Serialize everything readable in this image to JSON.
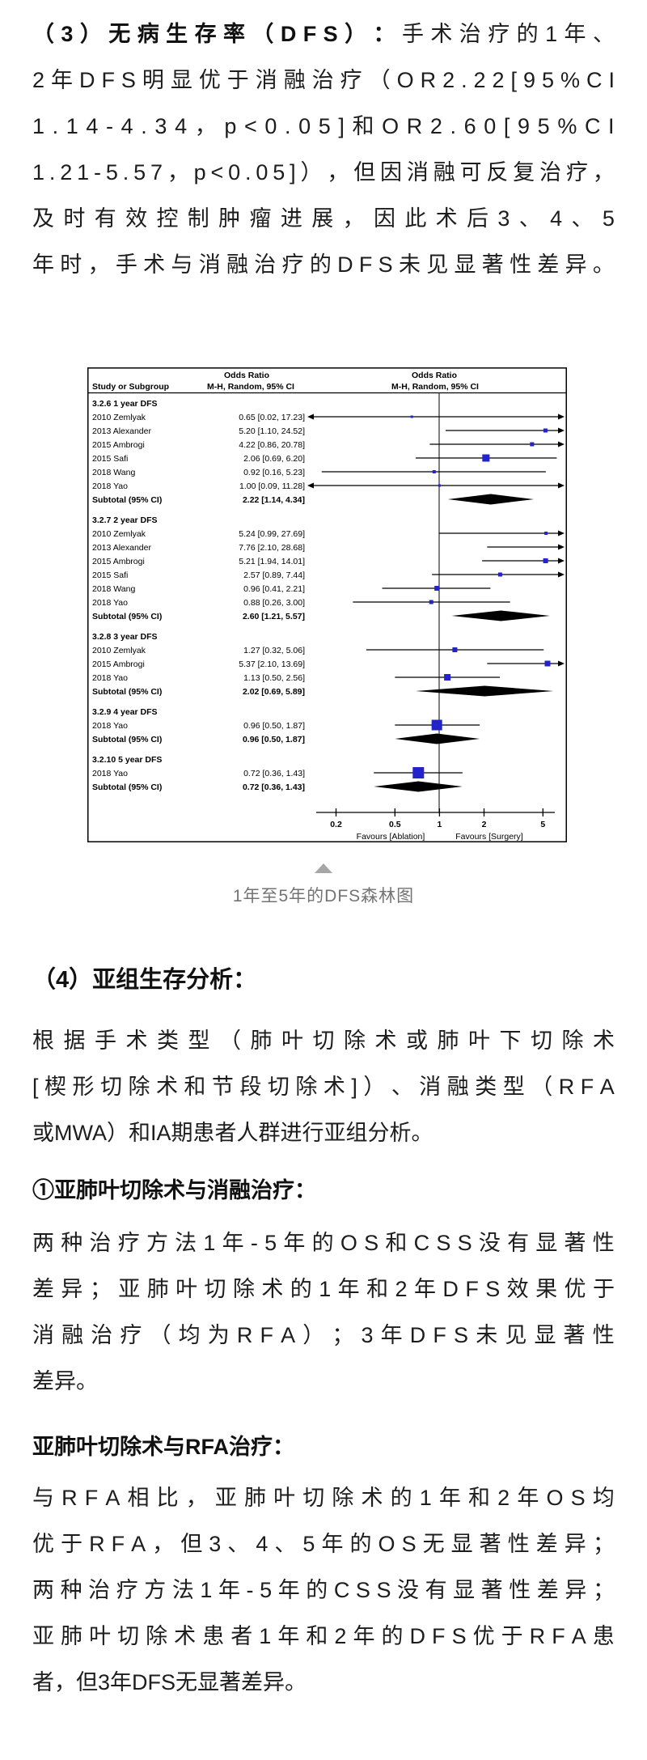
{
  "article": {
    "p1": {
      "lines": [
        {
          "j": true,
          "seg": [
            {
              "t": "（3）无病生存率（DFS）：",
              "b": true
            },
            {
              "t": "手术治疗的1年、",
              "b": false
            }
          ]
        },
        {
          "j": true,
          "seg": [
            {
              "t": "2年DFS明显优于消融治疗（OR2.22[95%CI",
              "b": false
            }
          ]
        },
        {
          "j": true,
          "seg": [
            {
              "t": "1.14-4.34，p<0.05]和OR2.60[95%CI",
              "b": false
            }
          ]
        },
        {
          "j": true,
          "seg": [
            {
              "t": "1.21-5.57，p<0.05]），但因消融可反复治疗，",
              "b": false
            }
          ]
        },
        {
          "j": true,
          "seg": [
            {
              "t": "及时有效控制肿瘤进展，因此术后3、4、5",
              "b": false
            }
          ]
        },
        {
          "j": true,
          "seg": [
            {
              "t": "年时，手术与消融治疗的DFS未见显著性差异。",
              "b": false
            }
          ]
        }
      ]
    },
    "caption": "1年至5年的DFS森林图",
    "heading4": "（4）亚组生存分析：",
    "p2": {
      "lines": [
        {
          "j": true,
          "seg": [
            {
              "t": "根据手术类型（肺叶切除术或肺叶下切除术",
              "b": false
            }
          ]
        },
        {
          "j": true,
          "seg": [
            {
              "t": "[楔形切除术和节段切除术]）、消融类型（RFA",
              "b": false
            }
          ]
        },
        {
          "j": false,
          "seg": [
            {
              "t": "或MWA）和IA期患者人群进行亚组分析。",
              "b": false
            }
          ]
        }
      ]
    },
    "heading_sub1": "①亚肺叶切除术与消融治疗：",
    "p3": {
      "lines": [
        {
          "j": true,
          "seg": [
            {
              "t": "两种治疗方法1年-5年的OS和CSS没有显著性",
              "b": false
            }
          ]
        },
        {
          "j": true,
          "seg": [
            {
              "t": "差异；亚肺叶切除术的1年和2年DFS效果优于",
              "b": false
            }
          ]
        },
        {
          "j": true,
          "seg": [
            {
              "t": "消融治疗（均为RFA）；3年DFS未见显著性",
              "b": false
            }
          ]
        },
        {
          "j": false,
          "seg": [
            {
              "t": "差异。",
              "b": false
            }
          ]
        }
      ]
    },
    "heading_sub2": "亚肺叶切除术与RFA治疗：",
    "p4": {
      "lines": [
        {
          "j": true,
          "seg": [
            {
              "t": "与RFA相比，亚肺叶切除术的1年和2年OS均",
              "b": false
            }
          ]
        },
        {
          "j": true,
          "seg": [
            {
              "t": "优于RFA，但3、4、5年的OS无显著性差异；",
              "b": false
            }
          ]
        },
        {
          "j": true,
          "seg": [
            {
              "t": "两种治疗方法1年-5年的CSS没有显著性差异；",
              "b": false
            }
          ]
        },
        {
          "j": true,
          "seg": [
            {
              "t": "亚肺叶切除术患者1年和2年的DFS优于RFA患",
              "b": false
            }
          ]
        },
        {
          "j": false,
          "seg": [
            {
              "t": "者，但3年DFS无显著差异。",
              "b": false
            }
          ]
        }
      ]
    }
  },
  "chart_data": {
    "type": "forest",
    "effect_measure": "Odds Ratio",
    "columns": {
      "study_header": "Study or Subgroup",
      "or_header": "Odds Ratio",
      "method_header": "M-H, Random, 95% CI"
    },
    "axis": {
      "scale": "log",
      "ticks": [
        0.2,
        0.5,
        1,
        2,
        5
      ],
      "tick_labels": [
        "0.2",
        "0.5",
        "1",
        "2",
        "5"
      ],
      "favours_left": "Favours [Ablation]",
      "favours_right": "Favours [Surgery]"
    },
    "colors": {
      "marker": "#2323c9",
      "diamond": "#000000"
    },
    "sections": [
      {
        "heading": "3.2.6 1 year DFS",
        "rows": [
          {
            "study": "2010 Zemlyak",
            "text": "0.65 [0.02, 17.23]",
            "or": 0.65,
            "lo": 0.02,
            "hi": 17.23,
            "w": 3
          },
          {
            "study": "2013 Alexander",
            "text": "5.20 [1.10, 24.52]",
            "or": 5.2,
            "lo": 1.1,
            "hi": 24.52,
            "w": 5
          },
          {
            "study": "2015 Ambrogi",
            "text": "4.22 [0.86, 20.78]",
            "or": 4.22,
            "lo": 0.86,
            "hi": 20.78,
            "w": 5
          },
          {
            "study": "2015 Safi",
            "text": "2.06 [0.69, 6.20]",
            "or": 2.06,
            "lo": 0.69,
            "hi": 6.2,
            "w": 9
          },
          {
            "study": "2018 Wang",
            "text": "0.92 [0.16, 5.23]",
            "or": 0.92,
            "lo": 0.16,
            "hi": 5.23,
            "w": 4
          },
          {
            "study": "2018 Yao",
            "text": "1.00 [0.09, 11.28]",
            "or": 1.0,
            "lo": 0.09,
            "hi": 11.28,
            "w": 3
          }
        ],
        "subtotal": {
          "label": "Subtotal (95% CI)",
          "text": "2.22 [1.14, 4.34]",
          "or": 2.22,
          "lo": 1.14,
          "hi": 4.34
        }
      },
      {
        "heading": "3.2.7 2 year DFS",
        "rows": [
          {
            "study": "2010 Zemlyak",
            "text": "5.24 [0.99, 27.69]",
            "or": 5.24,
            "lo": 0.99,
            "hi": 27.69,
            "w": 4
          },
          {
            "study": "2013 Alexander",
            "text": "7.76 [2.10, 28.68]",
            "or": 7.76,
            "lo": 2.1,
            "hi": 28.68,
            "w": 4
          },
          {
            "study": "2015 Ambrogi",
            "text": "5.21 [1.94, 14.01]",
            "or": 5.21,
            "lo": 1.94,
            "hi": 14.01,
            "w": 6
          },
          {
            "study": "2015 Safi",
            "text": "2.57 [0.89, 7.44]",
            "or": 2.57,
            "lo": 0.89,
            "hi": 7.44,
            "w": 5
          },
          {
            "study": "2018 Wang",
            "text": "0.96 [0.41, 2.21]",
            "or": 0.96,
            "lo": 0.41,
            "hi": 2.21,
            "w": 6
          },
          {
            "study": "2018 Yao",
            "text": "0.88 [0.26, 3.00]",
            "or": 0.88,
            "lo": 0.26,
            "hi": 3.0,
            "w": 5
          }
        ],
        "subtotal": {
          "label": "Subtotal (95% CI)",
          "text": "2.60 [1.21, 5.57]",
          "or": 2.6,
          "lo": 1.21,
          "hi": 5.57
        }
      },
      {
        "heading": "3.2.8 3 year DFS",
        "rows": [
          {
            "study": "2010 Zemlyak",
            "text": "1.27 [0.32, 5.06]",
            "or": 1.27,
            "lo": 0.32,
            "hi": 5.06,
            "w": 6
          },
          {
            "study": "2015 Ambrogi",
            "text": "5.37 [2.10, 13.69]",
            "or": 5.37,
            "lo": 2.1,
            "hi": 13.69,
            "w": 7
          },
          {
            "study": "2018 Yao",
            "text": "1.13 [0.50, 2.56]",
            "or": 1.13,
            "lo": 0.5,
            "hi": 2.56,
            "w": 8
          }
        ],
        "subtotal": {
          "label": "Subtotal (95% CI)",
          "text": "2.02 [0.69, 5.89]",
          "or": 2.02,
          "lo": 0.69,
          "hi": 5.89
        }
      },
      {
        "heading": "3.2.9 4 year DFS",
        "rows": [
          {
            "study": "2018 Yao",
            "text": "0.96 [0.50, 1.87]",
            "or": 0.96,
            "lo": 0.5,
            "hi": 1.87,
            "w": 13
          }
        ],
        "subtotal": {
          "label": "Subtotal (95% CI)",
          "text": "0.96 [0.50, 1.87]",
          "or": 0.96,
          "lo": 0.5,
          "hi": 1.87
        }
      },
      {
        "heading": "3.2.10 5 year DFS",
        "rows": [
          {
            "study": "2018 Yao",
            "text": "0.72 [0.36, 1.43]",
            "or": 0.72,
            "lo": 0.36,
            "hi": 1.43,
            "w": 14
          }
        ],
        "subtotal": {
          "label": "Subtotal (95% CI)",
          "text": "0.72 [0.36, 1.43]",
          "or": 0.72,
          "lo": 0.36,
          "hi": 1.43
        }
      }
    ]
  }
}
